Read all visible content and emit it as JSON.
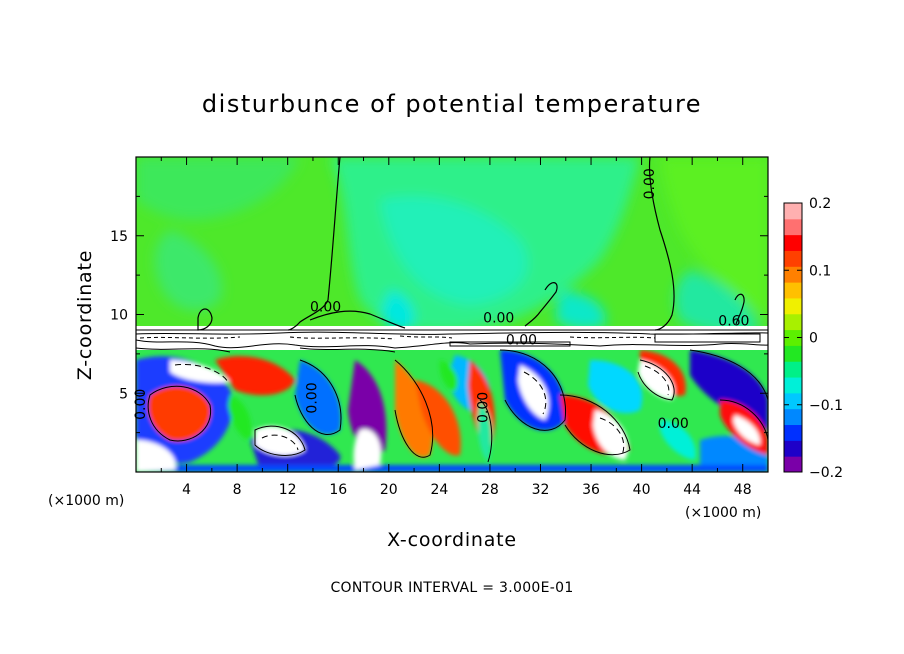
{
  "chart_data": {
    "type": "heatmap",
    "title": "disturbunce of potential temperature",
    "xlabel": "X-coordinate",
    "ylabel": "Z-coordinate",
    "x_unit": "(×1000 m)",
    "x_ticks": [
      4,
      8,
      12,
      16,
      20,
      24,
      28,
      32,
      36,
      40,
      44,
      48
    ],
    "y_ticks": [
      5,
      10,
      15
    ],
    "xlim": [
      0,
      50
    ],
    "ylim": [
      0,
      20
    ],
    "colorbar": {
      "min": -0.2,
      "max": 0.2,
      "ticks": [
        -0.2,
        -0.1,
        0,
        0.1,
        0.2
      ],
      "tick_labels": [
        "−0.2",
        "−0.1",
        "0",
        "0.1",
        "0.2"
      ],
      "colors": [
        "#7a00a8",
        "#1e00c8",
        "#0030ff",
        "#0088ff",
        "#00c8ff",
        "#00f0d8",
        "#00f088",
        "#22e822",
        "#5cf000",
        "#a8f000",
        "#f0f000",
        "#ffc000",
        "#ff8000",
        "#ff4000",
        "#ff0000",
        "#ff7070",
        "#ffb0b0"
      ]
    },
    "contour_labels": [
      {
        "text": "0.00",
        "x": 41,
        "z": 18.3
      },
      {
        "text": "0.00",
        "x": 15,
        "z": 10.2
      },
      {
        "text": "0.00",
        "x": 28.7,
        "z": 9.5
      },
      {
        "text": "0.00",
        "x": 30.5,
        "z": 8.1
      },
      {
        "text": "0.60",
        "x": 47.3,
        "z": 9.3
      },
      {
        "text": "0.00",
        "x": 0.7,
        "z": 4.3
      },
      {
        "text": "0.00",
        "x": 14.3,
        "z": 4.7
      },
      {
        "text": "0.00",
        "x": 27.8,
        "z": 4.1
      },
      {
        "text": "0.00",
        "x": 42.5,
        "z": 2.8
      }
    ],
    "contour_interval_label": "CONTOUR INTERVAL = 3.000E-01"
  }
}
